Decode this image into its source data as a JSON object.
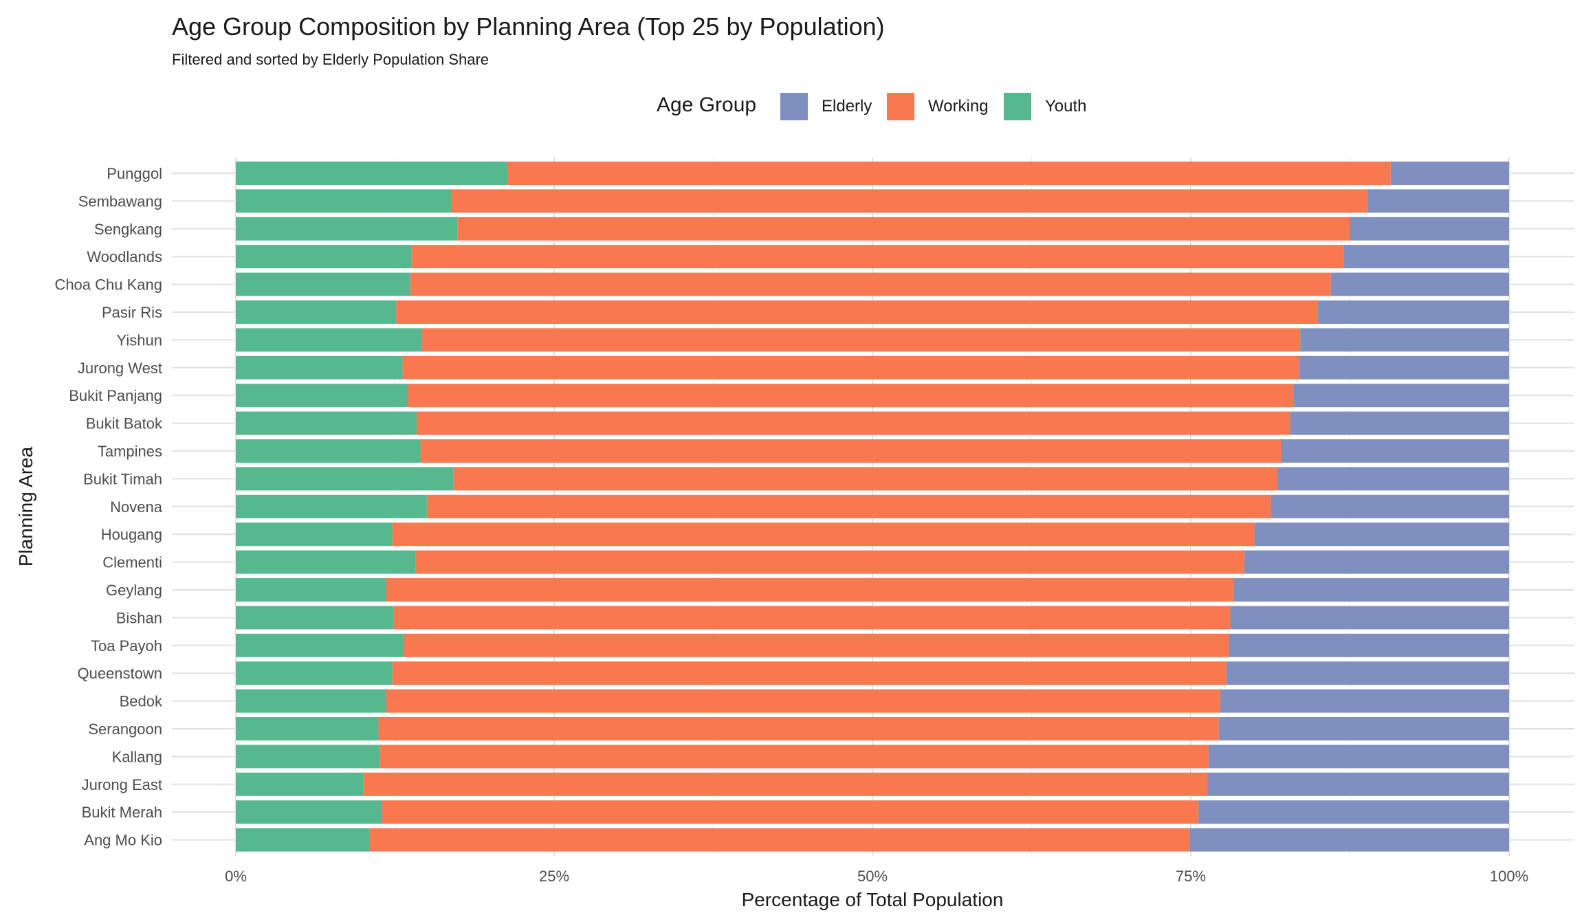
{
  "title": "Age Group Composition by Planning Area (Top 25 by Population)",
  "subtitle": "Filtered and sorted by Elderly Population Share",
  "legend": {
    "title": "Age Group",
    "items": [
      {
        "label": "Elderly",
        "color": "#7E8FC0"
      },
      {
        "label": "Working",
        "color": "#F87850"
      },
      {
        "label": "Youth",
        "color": "#56B88E"
      }
    ]
  },
  "chart_data": {
    "type": "bar",
    "orientation": "horizontal",
    "stacked": true,
    "xlabel": "Percentage of Total Population",
    "ylabel": "Planning Area",
    "xlim": [
      0,
      100
    ],
    "x_ticks": [
      "0%",
      "25%",
      "50%",
      "75%",
      "100%"
    ],
    "grid": true,
    "legend_position": "top",
    "categories": [
      "Punggol",
      "Sembawang",
      "Sengkang",
      "Woodlands",
      "Choa Chu Kang",
      "Pasir Ris",
      "Yishun",
      "Jurong West",
      "Bukit Panjang",
      "Bukit Batok",
      "Tampines",
      "Bukit Timah",
      "Novena",
      "Hougang",
      "Clementi",
      "Geylang",
      "Bishan",
      "Toa Payoh",
      "Queenstown",
      "Bedok",
      "Serangoon",
      "Kallang",
      "Jurong East",
      "Bukit Merah",
      "Ang Mo Kio"
    ],
    "series": [
      {
        "name": "Youth",
        "color": "#56B88E",
        "values": [
          21.3,
          16.9,
          17.4,
          13.8,
          13.7,
          12.6,
          14.6,
          13.1,
          13.5,
          14.2,
          14.5,
          17.1,
          15.0,
          12.3,
          14.1,
          11.8,
          12.4,
          13.2,
          12.3,
          11.8,
          11.2,
          11.3,
          10.0,
          11.5,
          10.5
        ]
      },
      {
        "name": "Working",
        "color": "#F87850",
        "values": [
          69.4,
          72.0,
          70.1,
          73.2,
          72.3,
          72.4,
          69.0,
          70.4,
          69.6,
          68.6,
          67.6,
          64.7,
          66.3,
          67.7,
          65.1,
          66.6,
          65.7,
          64.8,
          65.5,
          65.5,
          66.0,
          65.1,
          66.3,
          64.1,
          64.4
        ]
      },
      {
        "name": "Elderly",
        "color": "#7E8FC0",
        "values": [
          9.3,
          11.1,
          12.5,
          13.0,
          14.0,
          15.0,
          16.4,
          16.5,
          16.9,
          17.2,
          17.9,
          18.2,
          18.7,
          20.0,
          20.8,
          21.6,
          21.9,
          22.0,
          22.2,
          22.7,
          22.8,
          23.6,
          23.7,
          24.4,
          25.1
        ]
      }
    ]
  }
}
